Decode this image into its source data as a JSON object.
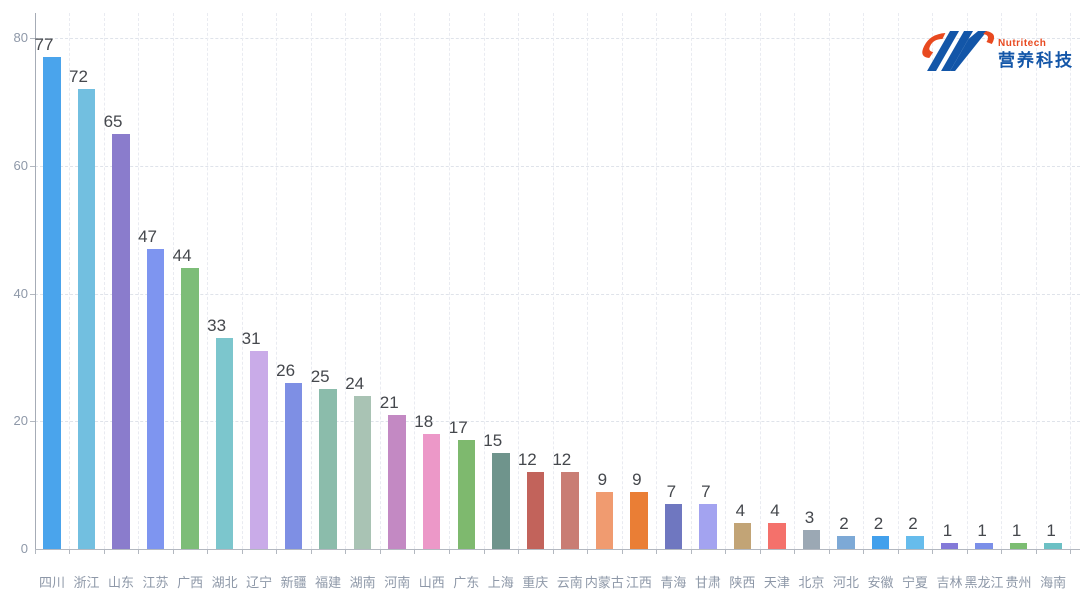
{
  "logo": {
    "brand_en": "Nutritech",
    "brand_zh": "营养科技",
    "blue": "#1356A8",
    "orange": "#E8491F"
  },
  "chart_data": {
    "type": "bar",
    "title": "",
    "xlabel": "",
    "ylabel": "",
    "categories": [
      "四川",
      "浙江",
      "山东",
      "江苏",
      "广西",
      "湖北",
      "辽宁",
      "新疆",
      "福建",
      "湖南",
      "河南",
      "山西",
      "广东",
      "上海",
      "重庆",
      "云南",
      "内蒙古",
      "江西",
      "青海",
      "甘肃",
      "陕西",
      "天津",
      "北京",
      "河北",
      "安徽",
      "宁夏",
      "吉林",
      "黑龙江",
      "贵州",
      "海南"
    ],
    "values": [
      77,
      72,
      65,
      47,
      44,
      33,
      31,
      26,
      25,
      24,
      21,
      18,
      17,
      15,
      12,
      12,
      9,
      9,
      7,
      7,
      4,
      4,
      3,
      2,
      2,
      2,
      1,
      1,
      1,
      1
    ],
    "bar_colors": [
      "#4AA4EC",
      "#72BFE0",
      "#8A7CCC",
      "#7E95F0",
      "#7DBD78",
      "#7CC6CD",
      "#C9ABE8",
      "#7E8FE4",
      "#8BBCAB",
      "#A9C3B4",
      "#C389C3",
      "#EC98C8",
      "#7EB96E",
      "#6F948C",
      "#C2635B",
      "#C97D74",
      "#F09B70",
      "#EA7E35",
      "#6F77C0",
      "#A3A3F0",
      "#C2A476",
      "#F4716B",
      "#9BA8B4",
      "#7DA9D6",
      "#42A0EC",
      "#66BCEC",
      "#8379D8",
      "#7B8FE8",
      "#7CBD72",
      "#6CC0C4"
    ],
    "yticks": [
      0,
      20,
      40,
      60,
      80
    ],
    "ylim": [
      0,
      84
    ],
    "grid": true,
    "legend": "none",
    "value_labels_shown": true,
    "value_label_color": "#45484D",
    "axis_label_color": "#8E98A8"
  }
}
